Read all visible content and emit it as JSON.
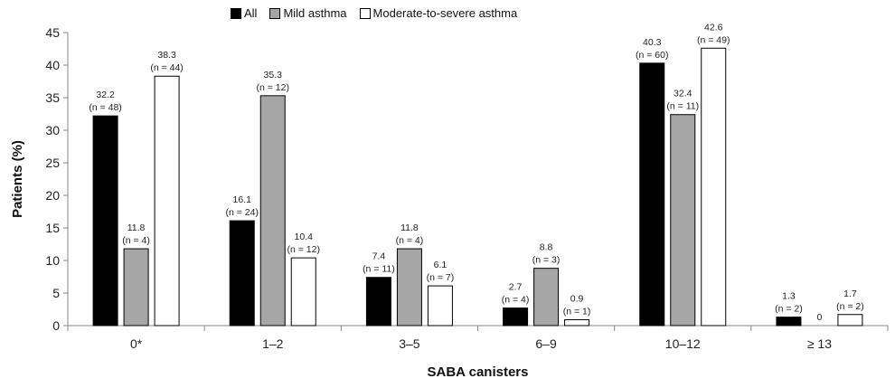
{
  "chart_data": {
    "type": "bar",
    "title": "",
    "xlabel": "SABA canisters",
    "ylabel": "Patients (%)",
    "ylim": [
      0,
      45
    ],
    "yticks": [
      0,
      5,
      10,
      15,
      20,
      25,
      30,
      35,
      40,
      45
    ],
    "grid": false,
    "legend_position": "top-center",
    "categories": [
      "0*",
      "1–2",
      "3–5",
      "6–9",
      "10–12",
      "≥ 13"
    ],
    "series": [
      {
        "name": "All",
        "color": "#000000",
        "values": [
          32.2,
          16.1,
          7.4,
          2.7,
          40.3,
          1.3
        ],
        "labels": [
          "32.2",
          "16.1",
          "7.4",
          "2.7",
          "40.3",
          "1.3"
        ],
        "n_labels": [
          "(n = 48)",
          "(n = 24)",
          "(n = 11)",
          "(n = 4)",
          "(n = 60)",
          "(n = 2)"
        ]
      },
      {
        "name": "Mild asthma",
        "color": "#a6a6a6",
        "values": [
          11.8,
          35.3,
          11.8,
          8.8,
          32.4,
          0
        ],
        "labels": [
          "11.8",
          "35.3",
          "11.8",
          "8.8",
          "32.4",
          "0"
        ],
        "n_labels": [
          "(n = 4)",
          "(n = 12)",
          "(n = 4)",
          "(n = 3)",
          "(n = 11)",
          ""
        ]
      },
      {
        "name": "Moderate-to-severe asthma",
        "color": "#ffffff",
        "values": [
          38.3,
          10.4,
          6.1,
          0.9,
          42.6,
          1.7
        ],
        "labels": [
          "38.3",
          "10.4",
          "6.1",
          "0.9",
          "42.6",
          "1.7"
        ],
        "n_labels": [
          "(n = 44)",
          "(n = 12)",
          "(n = 7)",
          "(n = 1)",
          "(n = 49)",
          "(n = 2)"
        ]
      }
    ]
  }
}
